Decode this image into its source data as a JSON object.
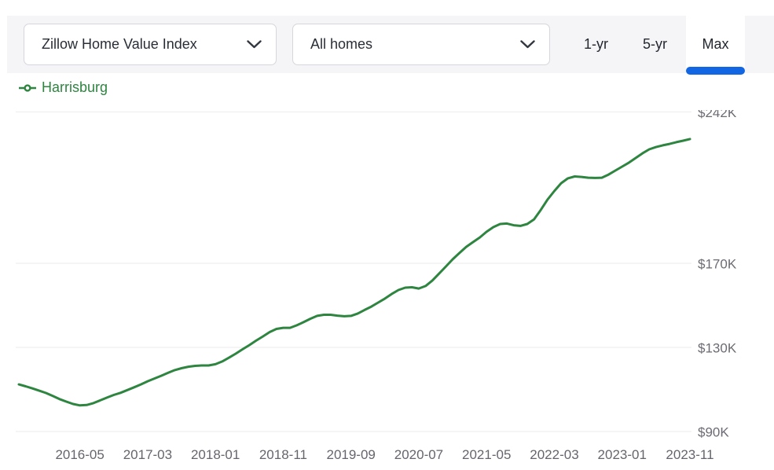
{
  "header": {
    "metric_dropdown": {
      "value": "Zillow Home Value Index"
    },
    "segment_dropdown": {
      "value": "All homes"
    },
    "range_tabs": [
      {
        "label": "1-yr",
        "active": false
      },
      {
        "label": "5-yr",
        "active": false
      },
      {
        "label": "Max",
        "active": true
      }
    ]
  },
  "legend": {
    "series_name": "Harrisburg"
  },
  "icons": {
    "metric_dropdown_chevron": "chevron-down",
    "segment_dropdown_chevron": "chevron-down",
    "legend_marker": "line-with-circle"
  },
  "colors": {
    "series_green": "#2e8540",
    "active_tab_blue": "#1266e3",
    "topbar_gray": "#f5f5f7",
    "gridline": "#ebebeb",
    "axis_text": "#6b6b73"
  },
  "chart_data": {
    "type": "line",
    "title": "",
    "xlabel": "",
    "ylabel": "",
    "unit": "USD (thousands)",
    "grid": "horizontal-only",
    "legend_position": "top-left",
    "ylim": [
      90,
      242
    ],
    "yticks": [
      {
        "label": "$242K",
        "value": 242
      },
      {
        "label": "$170K",
        "value": 170
      },
      {
        "label": "$130K",
        "value": 130
      },
      {
        "label": "$90K",
        "value": 90
      }
    ],
    "xtick_labels": [
      "2016-05",
      "2017-03",
      "2018-01",
      "2018-11",
      "2019-09",
      "2020-07",
      "2021-05",
      "2022-03",
      "2023-01",
      "2023-11"
    ],
    "xtick_indices": [
      9,
      19,
      29,
      39,
      49,
      59,
      69,
      79,
      89,
      99
    ],
    "series": [
      {
        "name": "Harrisburg",
        "color": "#2e8540",
        "x": [
          "2015-08",
          "2015-09",
          "2015-10",
          "2015-11",
          "2015-12",
          "2016-01",
          "2016-02",
          "2016-03",
          "2016-04",
          "2016-05",
          "2016-06",
          "2016-07",
          "2016-08",
          "2016-09",
          "2016-10",
          "2016-11",
          "2016-12",
          "2017-01",
          "2017-02",
          "2017-03",
          "2017-04",
          "2017-05",
          "2017-06",
          "2017-07",
          "2017-08",
          "2017-09",
          "2017-10",
          "2017-11",
          "2017-12",
          "2018-01",
          "2018-02",
          "2018-03",
          "2018-04",
          "2018-05",
          "2018-06",
          "2018-07",
          "2018-08",
          "2018-09",
          "2018-10",
          "2018-11",
          "2018-12",
          "2019-01",
          "2019-02",
          "2019-03",
          "2019-04",
          "2019-05",
          "2019-06",
          "2019-07",
          "2019-08",
          "2019-09",
          "2019-10",
          "2019-11",
          "2019-12",
          "2020-01",
          "2020-02",
          "2020-03",
          "2020-04",
          "2020-05",
          "2020-06",
          "2020-07",
          "2020-08",
          "2020-09",
          "2020-10",
          "2020-11",
          "2020-12",
          "2021-01",
          "2021-02",
          "2021-03",
          "2021-04",
          "2021-05",
          "2021-06",
          "2021-07",
          "2021-08",
          "2021-09",
          "2021-10",
          "2021-11",
          "2021-12",
          "2022-01",
          "2022-02",
          "2022-03",
          "2022-04",
          "2022-05",
          "2022-06",
          "2022-07",
          "2022-08",
          "2022-09",
          "2022-10",
          "2022-11",
          "2022-12",
          "2023-01",
          "2023-02",
          "2023-03",
          "2023-04",
          "2023-05",
          "2023-06",
          "2023-07",
          "2023-08",
          "2023-09",
          "2023-10",
          "2023-11"
        ],
        "values": [
          112.4,
          111.5,
          110.5,
          109.4,
          108.3,
          106.9,
          105.4,
          104.2,
          103.1,
          102.4,
          102.6,
          103.5,
          104.8,
          106.1,
          107.4,
          108.4,
          109.7,
          111.0,
          112.4,
          113.9,
          115.2,
          116.5,
          117.9,
          119.2,
          120.1,
          120.8,
          121.2,
          121.4,
          121.4,
          122.0,
          123.3,
          125.1,
          127.0,
          129.1,
          131.1,
          133.2,
          135.2,
          137.3,
          138.8,
          139.3,
          139.3,
          140.5,
          142.0,
          143.6,
          145.0,
          145.5,
          145.5,
          145.1,
          144.8,
          145.0,
          146.1,
          147.8,
          149.4,
          151.3,
          153.2,
          155.4,
          157.3,
          158.4,
          158.6,
          158.0,
          159.2,
          161.8,
          165.1,
          168.5,
          171.9,
          174.9,
          177.8,
          180.1,
          182.3,
          185.0,
          187.2,
          188.7,
          188.9,
          188.1,
          187.8,
          188.7,
          190.9,
          195.4,
          200.3,
          204.4,
          208.1,
          210.4,
          211.3,
          211.1,
          210.7,
          210.6,
          210.7,
          212.2,
          214.1,
          216.0,
          217.9,
          220.1,
          222.3,
          224.2,
          225.3,
          226.1,
          226.8,
          227.6,
          228.3,
          229.1
        ]
      }
    ]
  }
}
